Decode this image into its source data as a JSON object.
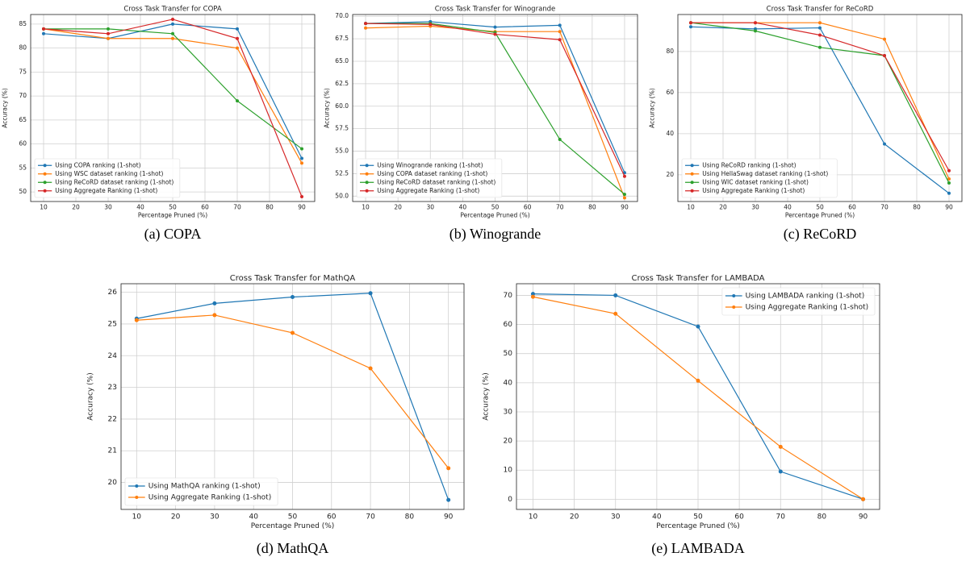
{
  "chart_data": [
    {
      "type": "line",
      "title": "Cross Task Transfer for COPA",
      "caption": "(a)  COPA",
      "xlabel": "Percentage Pruned (%)",
      "ylabel": "Accuracy (%)",
      "x": [
        10,
        30,
        50,
        70,
        90
      ],
      "xlim": [
        6,
        94
      ],
      "xticks": [
        10,
        20,
        30,
        40,
        50,
        60,
        70,
        80,
        90
      ],
      "ylim": [
        48,
        87
      ],
      "yticks": [
        50,
        55,
        60,
        65,
        70,
        75,
        80,
        85
      ],
      "grid": true,
      "legend": "lower left",
      "series": [
        {
          "name": "Using COPA ranking (1-shot)",
          "color": "#1f77b4",
          "values": [
            83,
            82,
            85,
            84,
            57
          ]
        },
        {
          "name": "Using WSC dataset ranking (1-shot)",
          "color": "#ff7f0e",
          "values": [
            84,
            82,
            82,
            80,
            56
          ]
        },
        {
          "name": "Using ReCoRD dataset ranking (1-shot)",
          "color": "#2ca02c",
          "values": [
            84,
            84,
            83,
            69,
            59
          ]
        },
        {
          "name": "Using Aggregate Ranking (1-shot)",
          "color": "#d62728",
          "values": [
            84,
            83,
            86,
            82,
            49
          ]
        }
      ]
    },
    {
      "type": "line",
      "title": "Cross Task Transfer for Winogrande",
      "caption": "(b)  Winogrande",
      "xlabel": "Percentage Pruned (%)",
      "ylabel": "Accuracy (%)",
      "x": [
        10,
        30,
        50,
        70,
        90
      ],
      "xlim": [
        6,
        94
      ],
      "xticks": [
        10,
        20,
        30,
        40,
        50,
        60,
        70,
        80,
        90
      ],
      "ylim": [
        49.4,
        70.2
      ],
      "yticks": [
        {
          "value": 50,
          "label": "50.0"
        },
        52.5,
        {
          "value": 55,
          "label": "55.0"
        },
        57.5,
        {
          "value": 60,
          "label": "60.0"
        },
        62.5,
        {
          "value": 65,
          "label": "65.0"
        },
        67.5,
        {
          "value": 70,
          "label": "70.0"
        }
      ],
      "grid": true,
      "legend": "lower left",
      "series": [
        {
          "name": "Using Winogrande ranking (1-shot)",
          "color": "#1f77b4",
          "values": [
            69.2,
            69.4,
            68.8,
            69.0,
            52.6
          ]
        },
        {
          "name": "Using COPA dataset ranking (1-shot)",
          "color": "#ff7f0e",
          "values": [
            68.7,
            68.9,
            68.3,
            68.3,
            49.8
          ]
        },
        {
          "name": "Using ReCoRD dataset ranking (1-shot)",
          "color": "#2ca02c",
          "values": [
            69.2,
            69.2,
            68.2,
            56.3,
            50.2
          ]
        },
        {
          "name": "Using Aggregate Ranking (1-shot)",
          "color": "#d62728",
          "values": [
            69.2,
            69.1,
            68.0,
            67.4,
            52.2
          ]
        }
      ]
    },
    {
      "type": "line",
      "title": "Cross Task Transfer for ReCoRD",
      "caption": "(c)  ReCoRD",
      "xlabel": "Percentage Pruned (%)",
      "ylabel": "Accuracy (%)",
      "x": [
        10,
        30,
        50,
        70,
        90
      ],
      "xlim": [
        6,
        94
      ],
      "xticks": [
        10,
        20,
        30,
        40,
        50,
        60,
        70,
        80,
        90
      ],
      "ylim": [
        7,
        98
      ],
      "yticks": [
        20,
        40,
        60,
        80
      ],
      "grid": true,
      "legend": "lower left",
      "series": [
        {
          "name": "Using ReCoRD ranking (1-shot)",
          "color": "#1f77b4",
          "values": [
            92,
            91,
            91.5,
            35,
            11
          ]
        },
        {
          "name": "Using HellaSwag dataset ranking (1-shot)",
          "color": "#ff7f0e",
          "values": [
            94,
            94,
            94,
            86,
            18
          ]
        },
        {
          "name": "Using WIC dataset ranking (1-shot)",
          "color": "#2ca02c",
          "values": [
            94,
            90,
            82,
            78,
            16
          ]
        },
        {
          "name": "Using Aggregate Ranking (1-shot)",
          "color": "#d62728",
          "values": [
            94,
            94,
            88,
            78,
            22
          ]
        }
      ]
    },
    {
      "type": "line",
      "title": "Cross Task Transfer for MathQA",
      "caption": "(d)  MathQA",
      "xlabel": "Percentage Pruned (%)",
      "ylabel": "Accuracy (%)",
      "x": [
        10,
        30,
        50,
        70,
        90
      ],
      "xlim": [
        6,
        94
      ],
      "xticks": [
        10,
        20,
        30,
        40,
        50,
        60,
        70,
        80,
        90
      ],
      "ylim": [
        19.15,
        26.27
      ],
      "yticks": [
        20,
        21,
        22,
        23,
        24,
        25,
        26
      ],
      "grid": true,
      "legend": "lower left",
      "series": [
        {
          "name": "Using MathQA ranking (1-shot)",
          "color": "#1f77b4",
          "values": [
            25.17,
            25.65,
            25.85,
            25.97,
            19.45
          ]
        },
        {
          "name": "Using Aggregate Ranking (1-shot)",
          "color": "#ff7f0e",
          "values": [
            25.12,
            25.28,
            24.72,
            23.6,
            20.45
          ]
        }
      ]
    },
    {
      "type": "line",
      "title": "Cross Task Transfer for LAMBADA",
      "caption": "(e)  LAMBADA",
      "xlabel": "Percentage Pruned (%)",
      "ylabel": "Accuracy (%)",
      "x": [
        10,
        30,
        50,
        70,
        90
      ],
      "xlim": [
        6,
        94
      ],
      "xticks": [
        10,
        20,
        30,
        40,
        50,
        60,
        70,
        80,
        90
      ],
      "ylim": [
        -3.5,
        74
      ],
      "yticks": [
        0,
        10,
        20,
        30,
        40,
        50,
        60,
        70
      ],
      "grid": true,
      "legend": "upper right",
      "series": [
        {
          "name": "Using LAMBADA ranking (1-shot)",
          "color": "#1f77b4",
          "values": [
            70.5,
            70,
            59.3,
            9.5,
            0
          ]
        },
        {
          "name": "Using Aggregate Ranking (1-shot)",
          "color": "#ff7f0e",
          "values": [
            69.5,
            63.7,
            40.7,
            18,
            0
          ]
        }
      ]
    }
  ]
}
